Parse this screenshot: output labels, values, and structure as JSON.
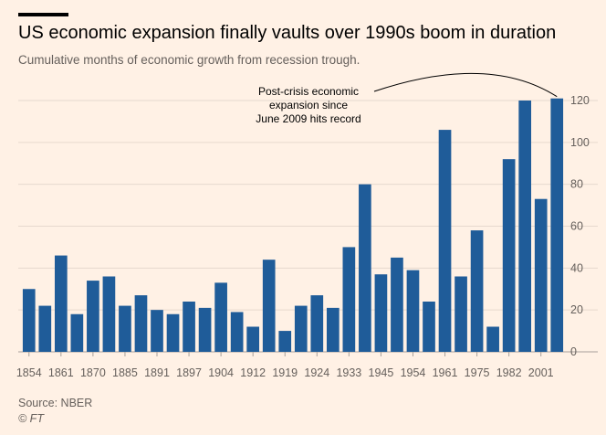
{
  "header": {
    "title": "US economic expansion finally vaults over 1990s boom in duration",
    "subtitle": "Cumulative months of economic growth from recession trough."
  },
  "footer": {
    "source": "Source: NBER",
    "credit": "© FT"
  },
  "colors": {
    "background": "#fff1e5",
    "bar": "#1f5c99",
    "grid": "#e6d9ce",
    "text": "#66605c"
  },
  "chart_data": {
    "type": "bar",
    "title": "US economic expansion finally vaults over 1990s boom in duration",
    "subtitle": "Cumulative months of economic growth from recession trough.",
    "xlabel": "",
    "ylabel": "",
    "ylim": [
      0,
      120
    ],
    "yticks": [
      0,
      20,
      40,
      60,
      80,
      100,
      120
    ],
    "y_axis_side": "right",
    "grid": true,
    "legend": "none",
    "x_tick_labels": [
      "1854",
      "1861",
      "1870",
      "1885",
      "1891",
      "1897",
      "1904",
      "1912",
      "1919",
      "1924",
      "1933",
      "1945",
      "1954",
      "1961",
      "1975",
      "1982",
      "2001"
    ],
    "x_tick_bar_index": [
      0,
      2,
      4,
      6,
      8,
      10,
      12,
      14,
      16,
      18,
      20,
      22,
      24,
      26,
      28,
      30,
      32
    ],
    "values": [
      30,
      22,
      46,
      18,
      34,
      36,
      22,
      27,
      20,
      18,
      24,
      21,
      33,
      19,
      12,
      44,
      10,
      22,
      27,
      21,
      50,
      80,
      37,
      45,
      39,
      24,
      106,
      36,
      58,
      12,
      92,
      120,
      73,
      121
    ],
    "annotation": {
      "lines": [
        "Post-crisis economic",
        "expansion since",
        "June 2009 hits record"
      ],
      "target_bar_index": 33
    }
  }
}
